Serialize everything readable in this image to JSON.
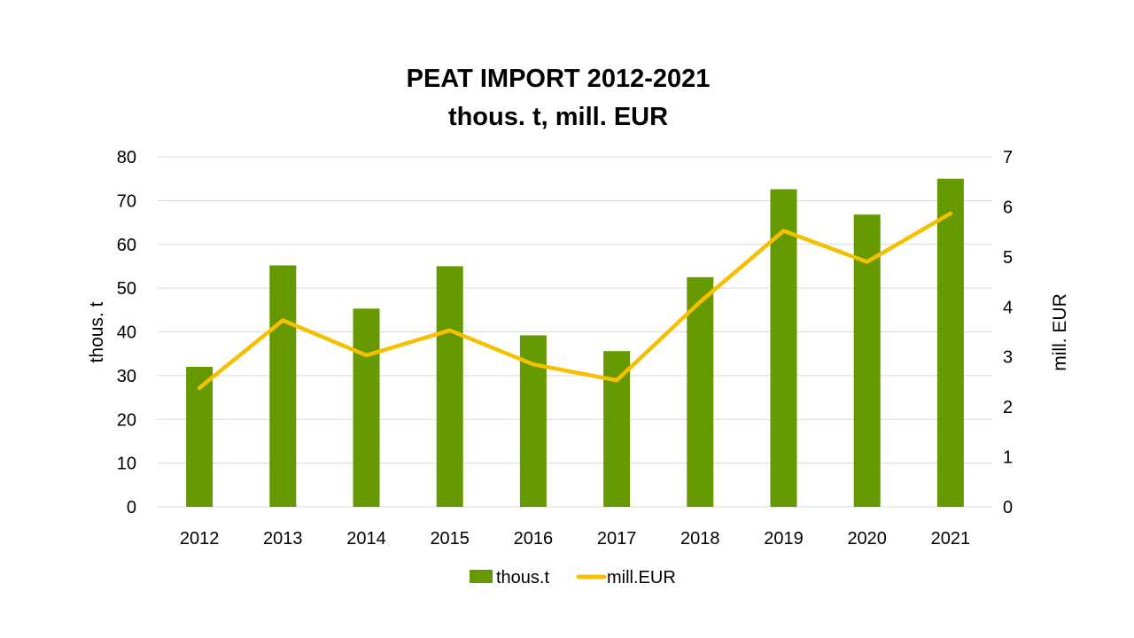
{
  "chart_data": {
    "type": "bar",
    "title": "PEAT IMPORT 2012-2021",
    "subtitle": "thous. t, mill. EUR",
    "categories": [
      "2012",
      "2013",
      "2014",
      "2015",
      "2016",
      "2017",
      "2018",
      "2019",
      "2020",
      "2021"
    ],
    "series": [
      {
        "name": "thous.t",
        "type": "bar",
        "axis": "left",
        "color": "#669900",
        "values": [
          32,
          55.2,
          45.3,
          55,
          39.2,
          35.6,
          52.5,
          72.6,
          66.8,
          75
        ]
      },
      {
        "name": "mill.EUR",
        "type": "line",
        "axis": "right",
        "color": "#F5C000",
        "values": [
          2.38,
          3.73,
          3.03,
          3.53,
          2.85,
          2.53,
          4.1,
          5.52,
          4.9,
          5.87
        ]
      }
    ],
    "ylabel": "thous. t",
    "y2label": "mill. EUR",
    "ylim": [
      0,
      80
    ],
    "y2lim": [
      0,
      7
    ],
    "yticks": [
      "0",
      "10",
      "20",
      "30",
      "40",
      "50",
      "60",
      "70",
      "80"
    ],
    "y2ticks": [
      "0",
      "1",
      "2",
      "3",
      "4",
      "5",
      "6",
      "7"
    ],
    "grid": true,
    "gridColor": "#d9d9d9",
    "legend_position": "bottom"
  }
}
